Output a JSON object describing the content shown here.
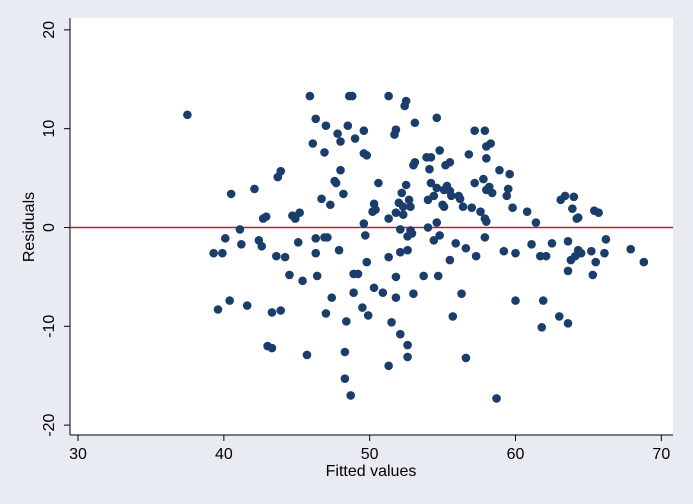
{
  "chart_data": {
    "type": "scatter",
    "xlabel": "Fitted values",
    "ylabel": "Residuals",
    "series": [
      {
        "color": "#1a3d6b",
        "x": [
          37.5,
          39.3,
          39.6,
          39.9,
          40.1,
          40.4,
          40.5,
          41.1,
          41.2,
          41.6,
          42.1,
          42.4,
          42.6,
          42.7,
          42.9,
          43.0,
          43.3,
          43.3,
          43.6,
          43.7,
          43.9,
          43.9,
          44.2,
          44.5,
          44.7,
          44.9,
          45.1,
          45.2,
          45.4,
          45.7,
          45.9,
          46.1,
          46.3,
          46.3,
          46.3,
          46.4,
          46.7,
          46.9,
          46.9,
          47.0,
          47.0,
          47.1,
          47.3,
          47.4,
          47.6,
          47.7,
          47.8,
          47.9,
          48.0,
          48.0,
          48.2,
          48.3,
          48.3,
          48.4,
          48.5,
          48.6,
          48.7,
          48.8,
          48.9,
          48.9,
          49.0,
          49.2,
          49.5,
          49.6,
          49.6,
          49.6,
          49.7,
          49.8,
          49.8,
          49.9,
          50.2,
          50.3,
          50.3,
          50.4,
          50.6,
          50.9,
          51.3,
          51.3,
          51.3,
          51.3,
          51.5,
          51.7,
          51.8,
          51.8,
          51.8,
          51.8,
          52.0,
          52.1,
          52.1,
          52.1,
          52.2,
          52.3,
          52.3,
          52.4,
          52.5,
          52.5,
          52.6,
          52.6,
          52.6,
          52.6,
          52.7,
          52.8,
          52.8,
          52.9,
          53.0,
          53.0,
          53.1,
          53.1,
          53.7,
          53.9,
          54.0,
          54.0,
          54.1,
          54.2,
          54.2,
          54.4,
          54.4,
          54.6,
          54.6,
          54.6,
          54.7,
          54.8,
          54.8,
          55.0,
          55.1,
          55.1,
          55.2,
          55.3,
          55.3,
          55.5,
          55.5,
          55.5,
          55.6,
          55.7,
          55.9,
          56.1,
          56.2,
          56.3,
          56.4,
          56.6,
          56.6,
          56.8,
          57.0,
          57.2,
          57.2,
          57.3,
          57.6,
          57.8,
          57.9,
          57.9,
          57.9,
          58.0,
          58.0,
          58.0,
          58.0,
          58.2,
          58.3,
          58.4,
          58.7,
          58.9,
          59.2,
          59.4,
          59.5,
          59.6,
          59.8,
          60.0,
          60.0,
          60.8,
          61.1,
          61.4,
          61.7,
          61.8,
          61.9,
          62.1,
          62.5,
          63.0,
          63.1,
          63.4,
          63.6,
          63.6,
          63.6,
          63.8,
          63.9,
          64.0,
          64.1,
          64.2,
          64.3,
          64.3,
          64.5,
          65.2,
          65.3,
          65.4,
          65.5,
          65.7,
          66.1,
          66.2,
          67.9,
          68.8
        ],
        "values": [
          11.4,
          -2.6,
          -8.3,
          -2.6,
          -1.1,
          -7.4,
          3.4,
          -0.2,
          -1.7,
          -7.9,
          3.9,
          -1.3,
          -1.9,
          0.9,
          1.1,
          -12.0,
          -12.2,
          -8.6,
          -2.9,
          5.1,
          5.7,
          -8.4,
          -3.0,
          -4.8,
          1.2,
          0.9,
          -1.5,
          1.5,
          -5.4,
          -12.9,
          13.3,
          8.5,
          -2.6,
          11.0,
          -1.1,
          -4.9,
          2.9,
          -1.0,
          7.6,
          10.3,
          -8.7,
          -1.0,
          2.3,
          -7.1,
          4.7,
          4.5,
          9.5,
          -2.3,
          8.7,
          5.8,
          3.4,
          -12.6,
          -15.3,
          -9.5,
          10.3,
          13.3,
          -17.0,
          13.3,
          -6.6,
          -4.7,
          9.0,
          -4.7,
          -8.1,
          9.8,
          7.5,
          0.4,
          -0.8,
          7.3,
          -3.5,
          -8.9,
          1.6,
          2.4,
          -6.1,
          1.8,
          4.5,
          -6.6,
          13.3,
          0.9,
          -14.0,
          -3.0,
          -9.6,
          9.4,
          9.9,
          -5.0,
          -7.1,
          1.5,
          2.5,
          -0.2,
          -2.5,
          -10.8,
          3.5,
          2.1,
          1.3,
          12.3,
          12.8,
          4.3,
          -2.3,
          -0.9,
          -11.9,
          -13.1,
          2.8,
          2.1,
          -0.3,
          -0.6,
          6.3,
          -6.7,
          10.6,
          6.6,
          -4.9,
          7.1,
          0.0,
          2.8,
          5.9,
          7.1,
          4.5,
          -1.3,
          3.2,
          0.5,
          11.1,
          4.0,
          -4.9,
          7.8,
          -0.8,
          2.3,
          3.8,
          2.1,
          6.3,
          4.2,
          4.0,
          6.6,
          3.7,
          -3.3,
          3.2,
          -9.0,
          -1.6,
          3.2,
          2.9,
          -6.7,
          2.1,
          -13.2,
          -2.1,
          7.4,
          2.0,
          9.8,
          4.5,
          -2.9,
          1.6,
          4.9,
          9.8,
          -1.0,
          0.9,
          7.0,
          3.8,
          8.2,
          0.6,
          4.1,
          8.5,
          3.5,
          -17.3,
          5.8,
          -2.4,
          3.2,
          3.9,
          5.4,
          2.0,
          -7.4,
          -2.6,
          1.6,
          -1.7,
          0.5,
          -2.9,
          -10.1,
          -7.4,
          -2.9,
          -1.6,
          -9.0,
          2.8,
          3.2,
          -1.4,
          -4.4,
          -9.7,
          -3.3,
          1.9,
          3.1,
          -2.9,
          0.9,
          -2.3,
          1.0,
          -2.6,
          -2.4,
          -4.8,
          1.7,
          -3.5,
          1.5,
          -2.6,
          -1.2,
          -2.2,
          -3.5
        ]
      }
    ],
    "xlim": [
      29.45,
      70.8
    ],
    "ylim": [
      -21.0,
      21.2
    ],
    "xticks": [
      30,
      40,
      50,
      60,
      70
    ],
    "yticks": [
      -20,
      -10,
      0,
      10,
      20
    ],
    "hline": 0,
    "hline_color": "#b0203c"
  }
}
